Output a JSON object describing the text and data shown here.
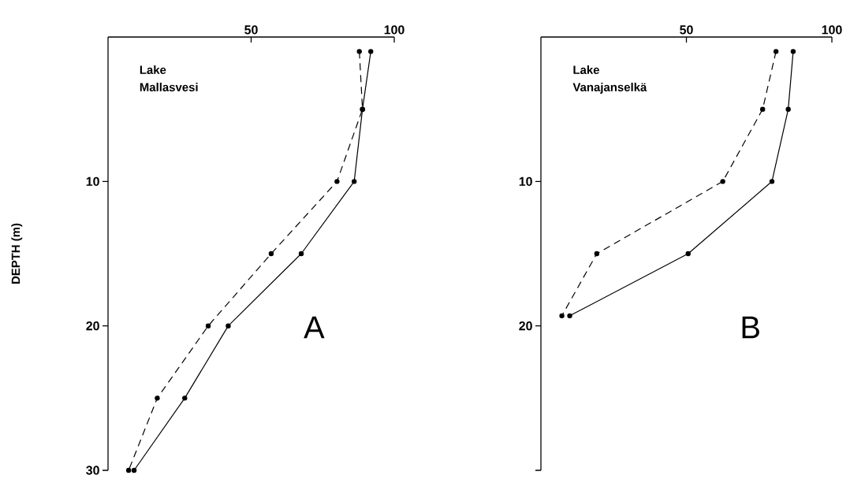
{
  "chart_data": [
    {
      "type": "line",
      "title": "Lake Mallasvesi",
      "ylabel": "DEPTH (m)",
      "annotations": [
        "A"
      ],
      "marker": "circle",
      "xlim": [
        0,
        100
      ],
      "xticks": [
        50,
        100
      ],
      "ylim": [
        30,
        0
      ],
      "yticks": [
        10,
        20,
        30
      ],
      "series": [
        {
          "color": "#000000",
          "line_style": "dashed",
          "x": [
            87.8,
            88.9,
            80,
            57,
            35,
            17.2,
            7.2
          ],
          "values": [
            1,
            5,
            10,
            15,
            20,
            25,
            30
          ]
        },
        {
          "color": "#000000",
          "line_style": "solid",
          "x": [
            91.8,
            88.9,
            86,
            67.5,
            42,
            26.8,
            9.1
          ],
          "values": [
            1,
            5,
            10,
            15,
            20,
            25,
            30
          ]
        }
      ]
    },
    {
      "type": "line",
      "title": "Lake Vanajanselkä",
      "annotations": [
        "B"
      ],
      "marker": "circle",
      "xlim": [
        0,
        100
      ],
      "xticks": [
        50,
        100
      ],
      "ylim": [
        30,
        0
      ],
      "yticks": [
        10,
        20,
        {
          "value": 30,
          "label": null
        }
      ],
      "series": [
        {
          "color": "#000000",
          "line_style": "dashed",
          "x": [
            80.8,
            76.2,
            62.5,
            19.2,
            7.2
          ],
          "values": [
            1,
            5,
            10,
            15,
            19.3
          ]
        },
        {
          "color": "#000000",
          "line_style": "solid",
          "x": [
            86.7,
            85,
            79.4,
            50.6,
            9.9
          ],
          "values": [
            1,
            5,
            10,
            15,
            19.3
          ]
        }
      ]
    }
  ]
}
